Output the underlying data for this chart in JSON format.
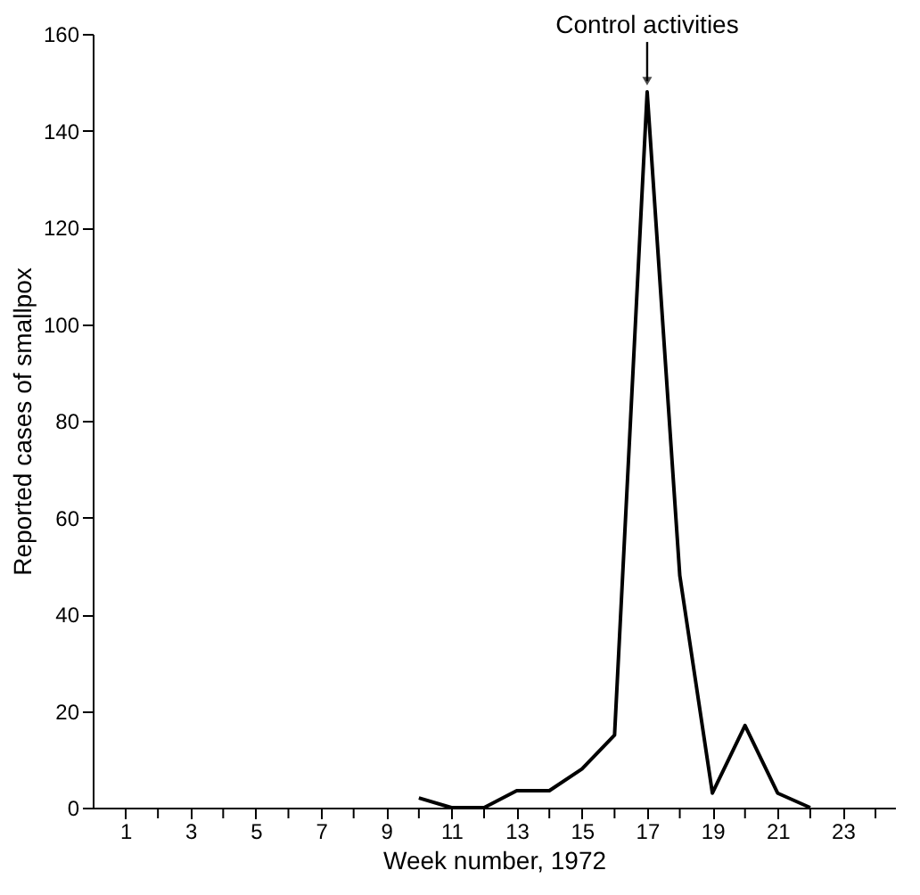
{
  "chart_data": {
    "type": "line",
    "xlabel": "Week number, 1972",
    "ylabel": "Reported cases of smallpox",
    "x": [
      10,
      11,
      12,
      13,
      14,
      15,
      16,
      17,
      18,
      19,
      20,
      21,
      22
    ],
    "series": [
      {
        "color": "#000000",
        "values": [
          2,
          0,
          0,
          3.5,
          3.5,
          8,
          15,
          148,
          48,
          3,
          17,
          3,
          0
        ]
      }
    ],
    "xlim": [
      0,
      24.6
    ],
    "ylim": [
      0,
      160
    ],
    "xticks": [
      1,
      {
        "value": 2,
        "label": null
      },
      3,
      {
        "value": 4,
        "label": null
      },
      5,
      {
        "value": 6,
        "label": null
      },
      7,
      {
        "value": 8,
        "label": null
      },
      9,
      {
        "value": 10,
        "label": null
      },
      11,
      {
        "value": 12,
        "label": null
      },
      13,
      {
        "value": 14,
        "label": null
      },
      15,
      {
        "value": 16,
        "label": null
      },
      17,
      {
        "value": 18,
        "label": null
      },
      19,
      {
        "value": 20,
        "label": null
      },
      21,
      {
        "value": 22,
        "label": null
      },
      23,
      {
        "value": 24,
        "label": null
      }
    ],
    "yticks": [
      0,
      20,
      40,
      60,
      80,
      100,
      120,
      140,
      160
    ],
    "annotations": [
      {
        "text": "Control activities",
        "x": 17,
        "y": 148
      }
    ],
    "grid": false,
    "marker": "none",
    "line_style": "solid"
  }
}
